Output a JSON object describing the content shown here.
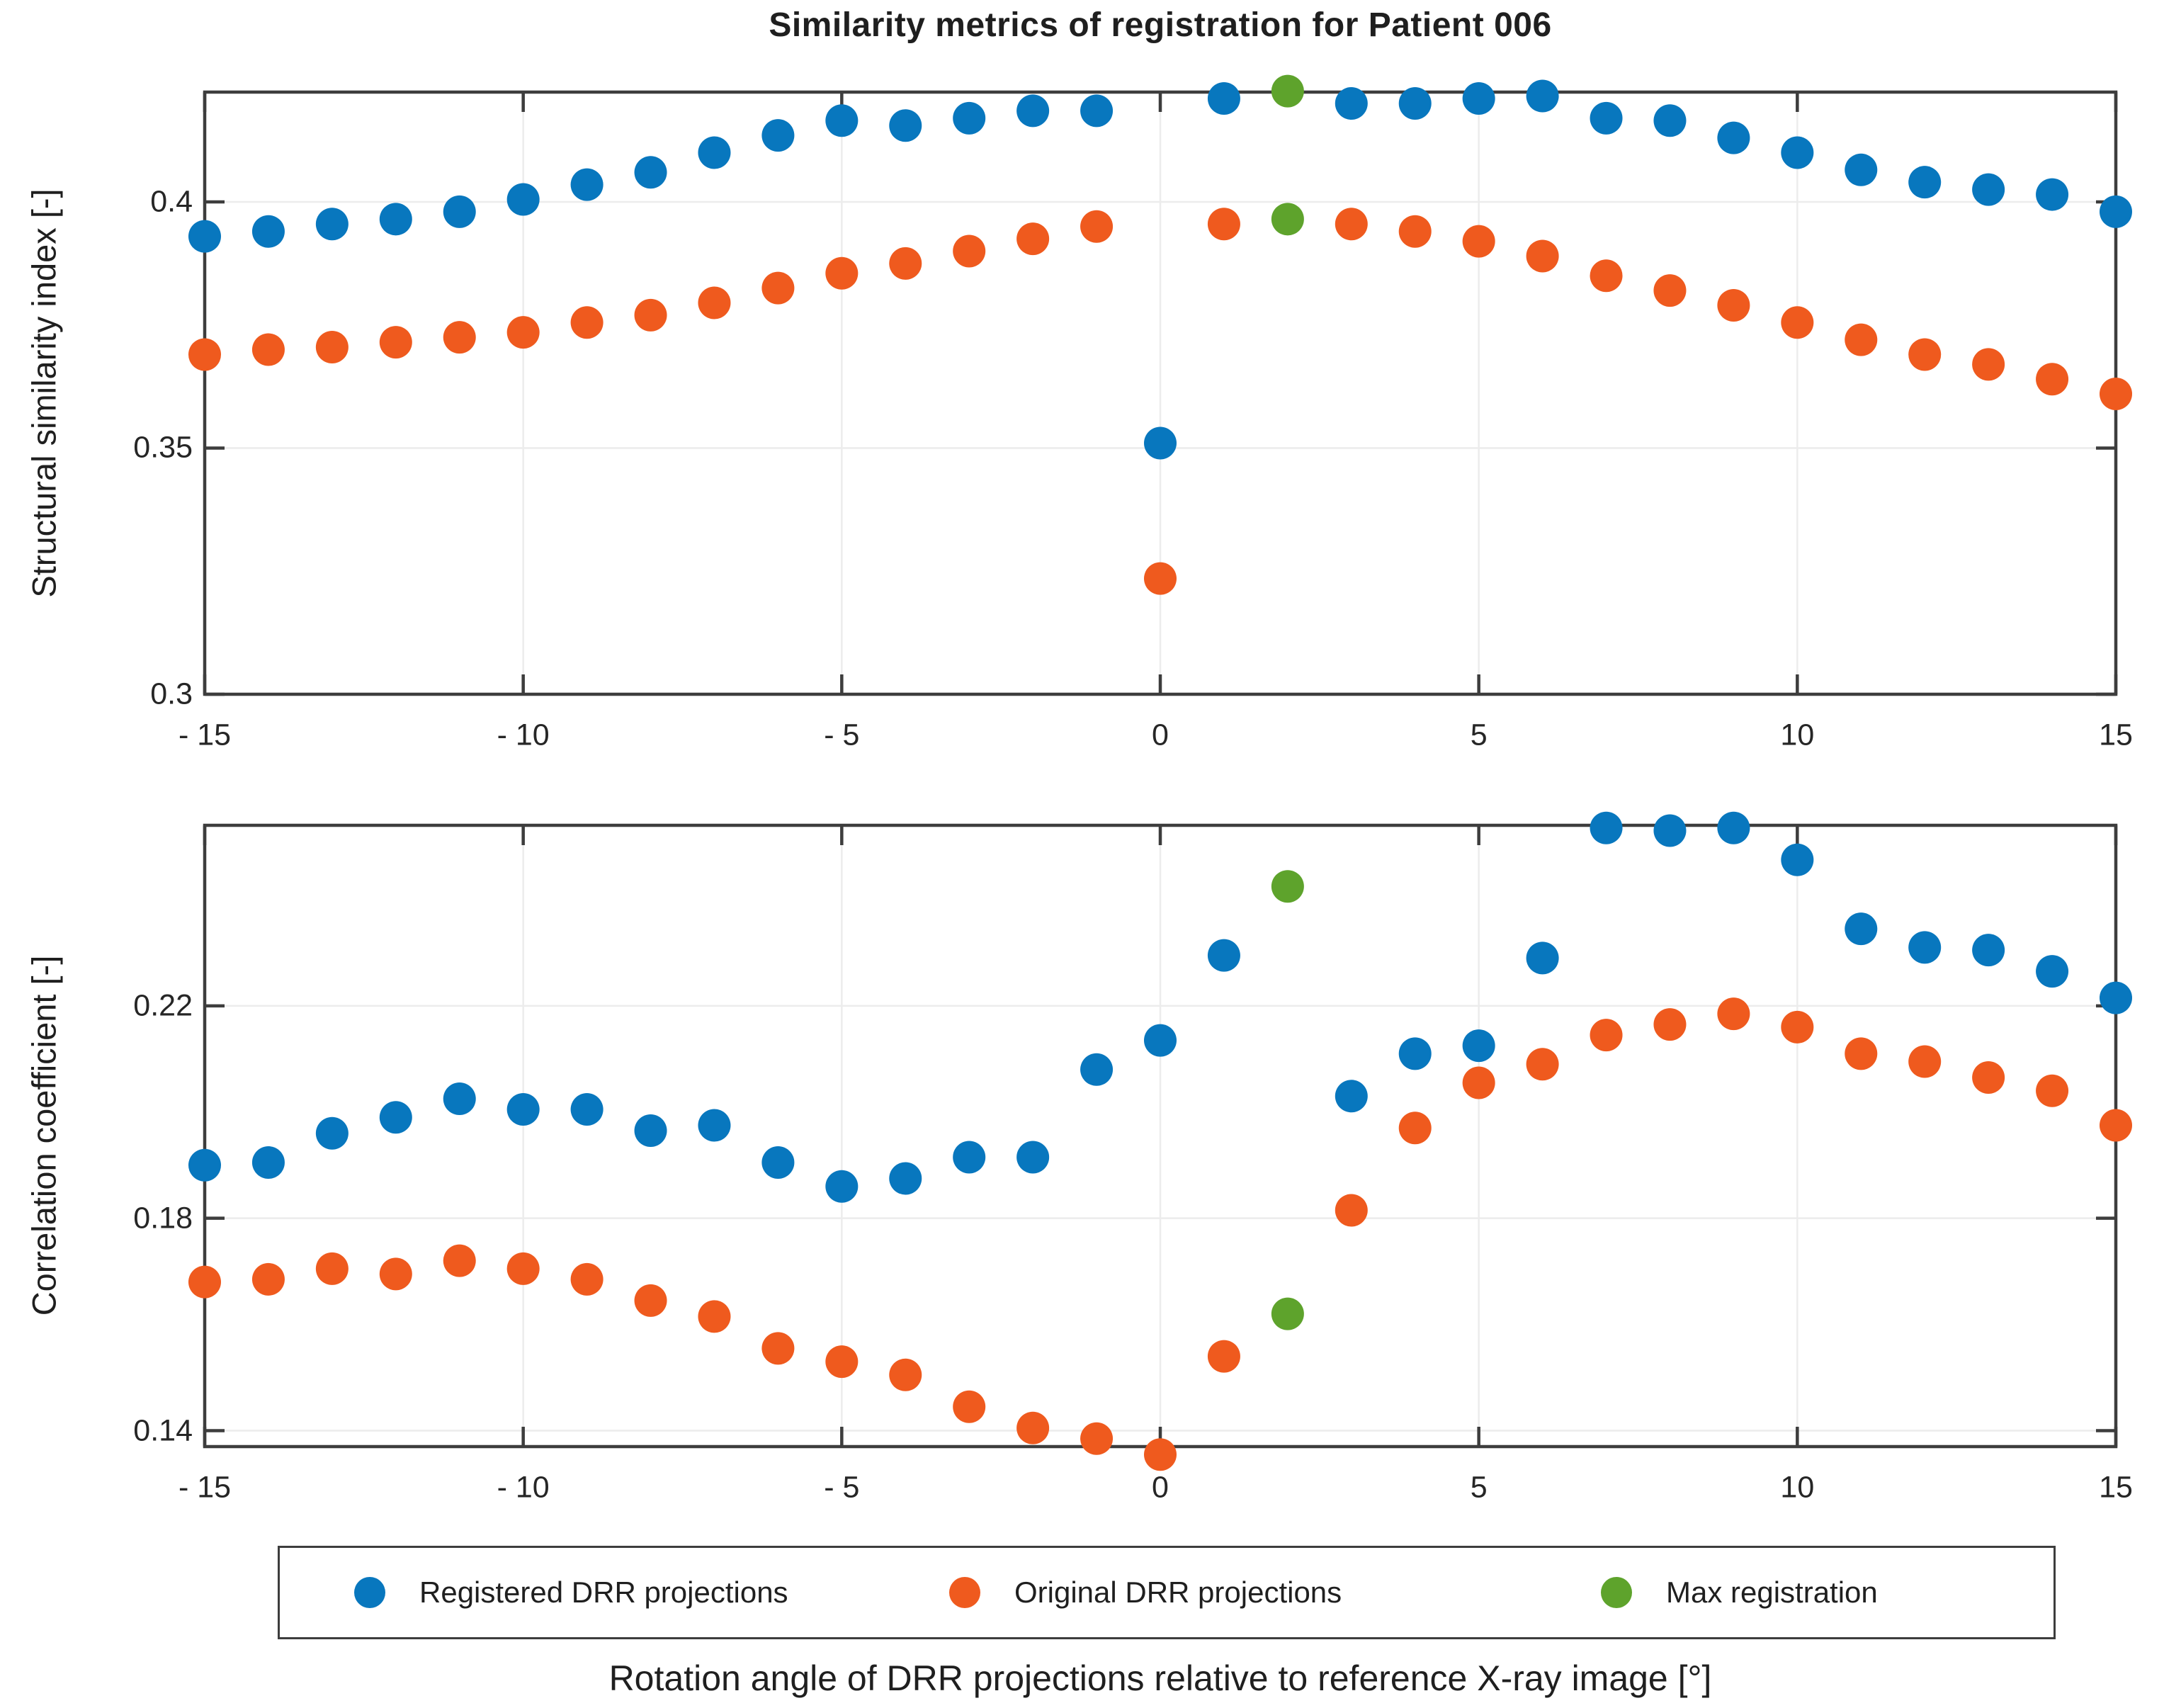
{
  "page": {
    "title": "Similarity metrics of registration for Patient 006",
    "xlabel": "Rotation angle of DRR projections relative to reference X-ray image [°]",
    "background": "#ffffff"
  },
  "colors": {
    "registered": "#0877be",
    "original": "#ef5a1e",
    "max": "#5ea32c",
    "axis": "#3d3d3d",
    "grid": "#ececec",
    "tick_text": "#262626",
    "label_text": "#1f1f1f"
  },
  "legend": {
    "items": [
      {
        "label": "Registered DRR projections",
        "series": "registered"
      },
      {
        "label": "Original DRR projections",
        "series": "original"
      },
      {
        "label": "Max registration",
        "series": "max"
      }
    ]
  },
  "chart_data": [
    {
      "type": "scatter",
      "panel": "structural-similarity-index",
      "title": "Similarity metrics of registration for Patient 006",
      "ylabel": "Structural similarity index [-]",
      "xlim": [
        -15,
        15
      ],
      "ylim": [
        0.3,
        0.4223
      ],
      "grid": true,
      "xtick_values": [
        -15,
        -10,
        -5,
        0,
        5,
        10,
        15
      ],
      "xtick_labels": [
        "- 15",
        "- 10",
        "- 5",
        "0",
        "5",
        "10",
        "15"
      ],
      "ytick_values": [
        0.3,
        0.35,
        0.4
      ],
      "ytick_labels": [
        "0.3",
        "0.35",
        "0.4"
      ],
      "x": [
        -15,
        -14,
        -13,
        -12,
        -11,
        -10,
        -9,
        -8,
        -7,
        -6,
        -5,
        -4,
        -3,
        -2,
        -1,
        0,
        1,
        2,
        3,
        4,
        5,
        6,
        7,
        8,
        9,
        10,
        11,
        12,
        13,
        14,
        15
      ],
      "series": [
        {
          "name": "Registered DRR projections",
          "key": "registered",
          "values": [
            0.393,
            0.394,
            0.3955,
            0.3965,
            0.398,
            0.4005,
            0.4035,
            0.406,
            0.41,
            0.4135,
            0.4165,
            0.4155,
            0.417,
            0.4185,
            0.4185,
            0.351,
            0.421,
            null,
            0.42,
            0.42,
            0.421,
            0.4215,
            0.417,
            0.4165,
            0.413,
            0.41,
            0.4065,
            0.404,
            0.4025,
            0.4015,
            0.398
          ]
        },
        {
          "name": "Original DRR projections",
          "key": "original",
          "values": [
            0.369,
            0.37,
            0.3705,
            0.3715,
            0.3725,
            0.3735,
            0.3755,
            0.377,
            0.3795,
            0.3825,
            0.3855,
            0.3875,
            0.39,
            0.3925,
            0.395,
            0.3235,
            0.3955,
            null,
            0.3955,
            0.394,
            0.392,
            0.389,
            0.385,
            0.382,
            0.379,
            0.3755,
            0.372,
            0.369,
            0.367,
            0.364,
            0.361
          ]
        },
        {
          "name": "Max registration",
          "key": "max",
          "points": [
            {
              "x": 2,
              "y": 0.4225
            },
            {
              "x": 2,
              "y": 0.3965
            }
          ]
        }
      ]
    },
    {
      "type": "scatter",
      "panel": "correlation-coefficient",
      "ylabel": "Correlation coefficient [-]",
      "xlabel": "Rotation angle of DRR projections relative to reference X-ray image [°]",
      "xlim": [
        -15,
        15
      ],
      "ylim": [
        0.137,
        0.254
      ],
      "grid": true,
      "xtick_values": [
        -15,
        -10,
        -5,
        0,
        5,
        10,
        15
      ],
      "xtick_labels": [
        "- 15",
        "- 10",
        "- 5",
        "0",
        "5",
        "10",
        "15"
      ],
      "ytick_values": [
        0.14,
        0.18,
        0.22
      ],
      "ytick_labels": [
        "0.14",
        "0.18",
        "0.22"
      ],
      "x": [
        -15,
        -14,
        -13,
        -12,
        -11,
        -10,
        -9,
        -8,
        -7,
        -6,
        -5,
        -4,
        -3,
        -2,
        -1,
        0,
        1,
        2,
        3,
        4,
        5,
        6,
        7,
        8,
        9,
        10,
        11,
        12,
        13,
        14,
        15
      ],
      "series": [
        {
          "name": "Registered DRR projections",
          "key": "registered",
          "values": [
            0.19,
            0.1905,
            0.196,
            0.199,
            0.2025,
            0.2005,
            0.2005,
            0.1965,
            0.1975,
            0.1905,
            0.186,
            0.1875,
            0.1915,
            0.1915,
            0.208,
            0.2135,
            0.2295,
            null,
            0.203,
            0.211,
            0.2125,
            0.229,
            0.2535,
            0.253,
            0.2535,
            0.2475,
            0.2345,
            0.231,
            0.2305,
            0.2265,
            0.2215
          ]
        },
        {
          "name": "Original DRR projections",
          "key": "original",
          "values": [
            0.168,
            0.1685,
            0.1705,
            0.1695,
            0.172,
            0.1705,
            0.1685,
            0.1645,
            0.1615,
            0.1555,
            0.153,
            0.1505,
            0.1445,
            0.1405,
            0.1385,
            0.1355,
            0.154,
            null,
            0.1815,
            0.197,
            0.2055,
            0.209,
            0.2145,
            0.2165,
            0.2185,
            0.216,
            0.211,
            0.2095,
            0.2065,
            0.204,
            0.1975
          ]
        },
        {
          "name": "Max registration",
          "key": "max",
          "points": [
            {
              "x": 2,
              "y": 0.2425
            },
            {
              "x": 2,
              "y": 0.162
            }
          ]
        }
      ]
    }
  ]
}
